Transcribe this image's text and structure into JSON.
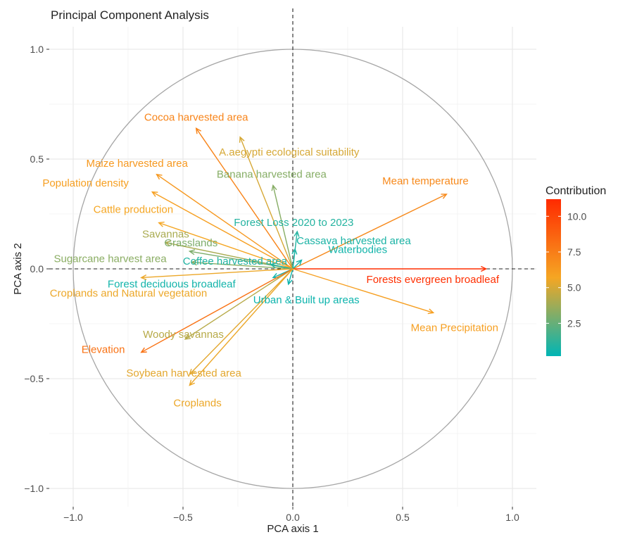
{
  "chart_data": {
    "type": "scatter",
    "title": "Principal Component Analysis",
    "xlabel": "PCA axis 1",
    "ylabel": "PCA axis 2",
    "xlim": [
      -1.0,
      1.0
    ],
    "ylim": [
      -1.0,
      1.0
    ],
    "x_ticks": [
      "−1.0",
      "−0.5",
      "0.0",
      "0.5",
      "1.0"
    ],
    "y_ticks": [
      "−1.0",
      "−0.5",
      "0.0",
      "0.5",
      "1.0"
    ],
    "grid": true,
    "correlation_circle": true,
    "legend": {
      "title": "Contribution",
      "position": "right",
      "ticks": [
        "10.0",
        "7.5",
        "5.0",
        "2.5"
      ],
      "scale_min": 0.2,
      "scale_max": 11.2,
      "colors": [
        "#00b5b5",
        "#f5a623",
        "#ff2a00"
      ]
    },
    "variables": [
      {
        "name": "Cocoa harvested area",
        "x": -0.44,
        "y": 0.64,
        "contrib": 7.2
      },
      {
        "name": "A.aegypti ecological suitability",
        "x": -0.24,
        "y": 0.6,
        "contrib": 5.0
      },
      {
        "name": "Maize harvested area",
        "x": -0.62,
        "y": 0.43,
        "contrib": 6.3
      },
      {
        "name": "Banana harvested area",
        "x": -0.09,
        "y": 0.38,
        "contrib": 3.2
      },
      {
        "name": "Population density",
        "x": -0.64,
        "y": 0.35,
        "contrib": 6.0
      },
      {
        "name": "Mean temperature",
        "x": 0.7,
        "y": 0.34,
        "contrib": 7.0
      },
      {
        "name": "Cattle production",
        "x": -0.61,
        "y": 0.21,
        "contrib": 5.7
      },
      {
        "name": "Forest Loss 2020 to 2023",
        "x": 0.02,
        "y": 0.17,
        "contrib": 1.0
      },
      {
        "name": "Savannas",
        "x": -0.58,
        "y": 0.12,
        "contrib": 4.0
      },
      {
        "name": "Cassava harvested area",
        "x": 0.01,
        "y": 0.09,
        "contrib": 0.8
      },
      {
        "name": "Grasslands",
        "x": -0.47,
        "y": 0.08,
        "contrib": 3.0
      },
      {
        "name": "Waterbodies",
        "x": 0.04,
        "y": 0.04,
        "contrib": 0.6
      },
      {
        "name": "Sugarcane harvest area",
        "x": -0.46,
        "y": 0.03,
        "contrib": 3.3
      },
      {
        "name": "Coffee harvested area",
        "x": -0.1,
        "y": 0.02,
        "contrib": 0.9
      },
      {
        "name": "Forests evergreen broadleaf",
        "x": 0.88,
        "y": 0.0,
        "contrib": 11.0
      },
      {
        "name": "Forest deciduous broadleaf",
        "x": -0.09,
        "y": -0.04,
        "contrib": 0.6
      },
      {
        "name": "Croplands and Natural vegetation",
        "x": -0.69,
        "y": -0.04,
        "contrib": 5.5
      },
      {
        "name": "Urban & Built up areas",
        "x": -0.02,
        "y": -0.07,
        "contrib": 0.5
      },
      {
        "name": "Mean Precipitation",
        "x": 0.64,
        "y": -0.2,
        "contrib": 6.0
      },
      {
        "name": "Woody savannas",
        "x": -0.49,
        "y": -0.32,
        "contrib": 4.3
      },
      {
        "name": "Elevation",
        "x": -0.69,
        "y": -0.38,
        "contrib": 8.0
      },
      {
        "name": "Soybean harvested area",
        "x": -0.47,
        "y": -0.48,
        "contrib": 5.3
      },
      {
        "name": "Croplands",
        "x": -0.47,
        "y": -0.53,
        "contrib": 5.5
      }
    ]
  }
}
